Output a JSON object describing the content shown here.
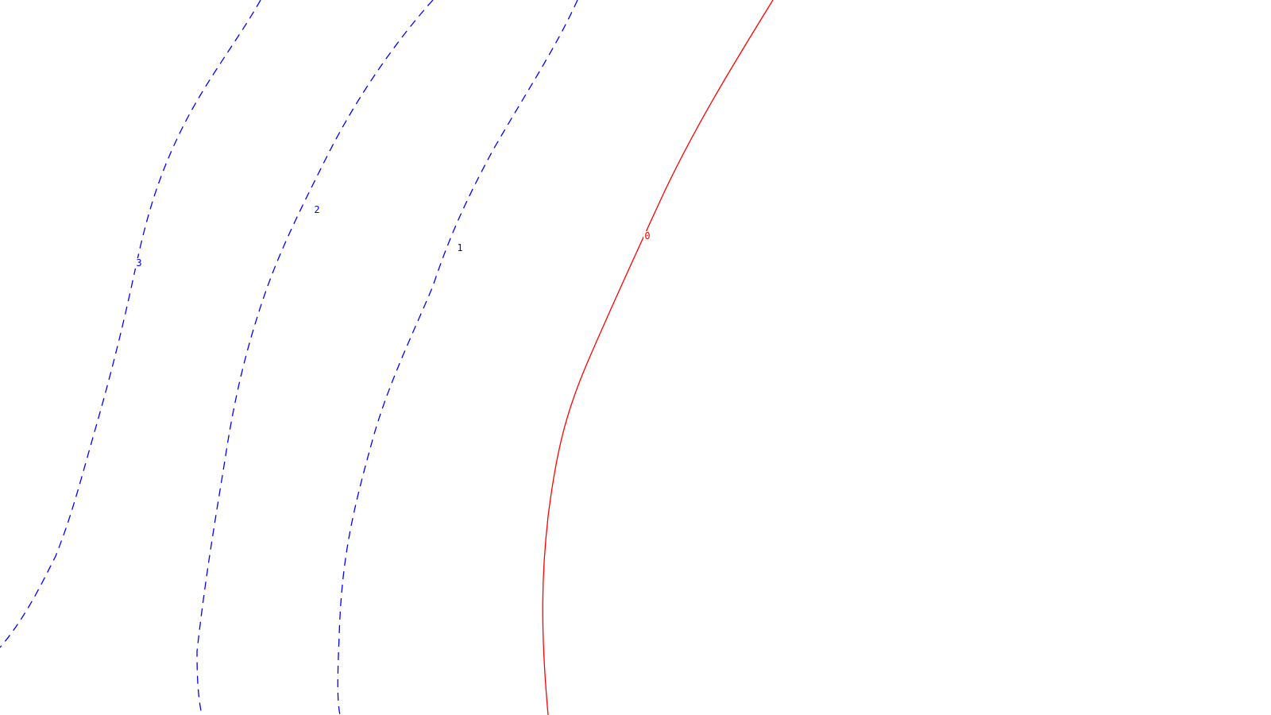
{
  "chart_data": {
    "type": "line",
    "subtype": "contour",
    "title": "",
    "xlabel": "",
    "ylabel": "",
    "grid": false,
    "legend": "none",
    "axes_visible": false,
    "series": [
      {
        "label": "0",
        "color": "#ff0000",
        "style": "solid"
      },
      {
        "label": "1",
        "color": "#0000ff",
        "style": "dashed"
      },
      {
        "label": "2",
        "color": "#0000ff",
        "style": "dashed"
      },
      {
        "label": "3",
        "color": "#0000ff",
        "style": "dashed"
      }
    ]
  }
}
